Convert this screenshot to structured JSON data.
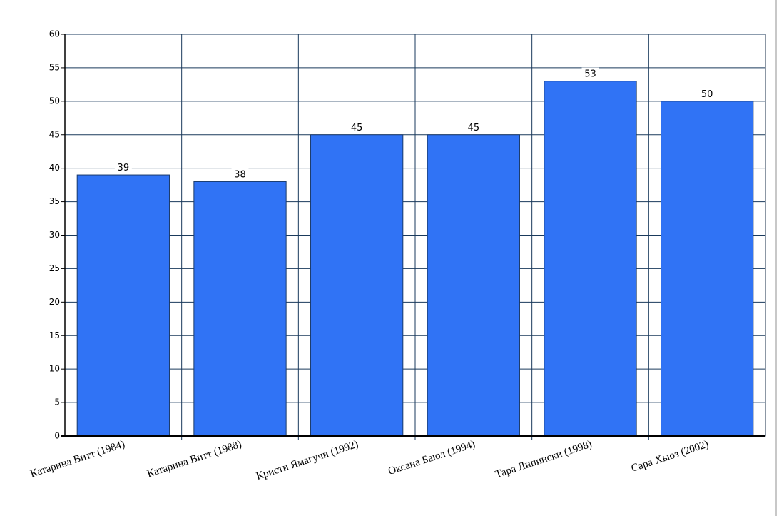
{
  "chart_data": {
    "type": "bar",
    "categories": [
      "Катарина Витт (1984)",
      "Катарина Витт (1988)",
      "Кристи Ямагучи (1992)",
      "Оксана Баюл (1994)",
      "Тара Липински (1998)",
      "Сара Хьюз (2002)"
    ],
    "values": [
      39,
      38,
      45,
      45,
      53,
      50
    ],
    "color": "#3073f5",
    "ylim": [
      0,
      60
    ],
    "yticks": [
      0,
      5,
      10,
      15,
      20,
      25,
      30,
      35,
      40,
      45,
      50,
      55,
      60
    ],
    "grid": true
  }
}
